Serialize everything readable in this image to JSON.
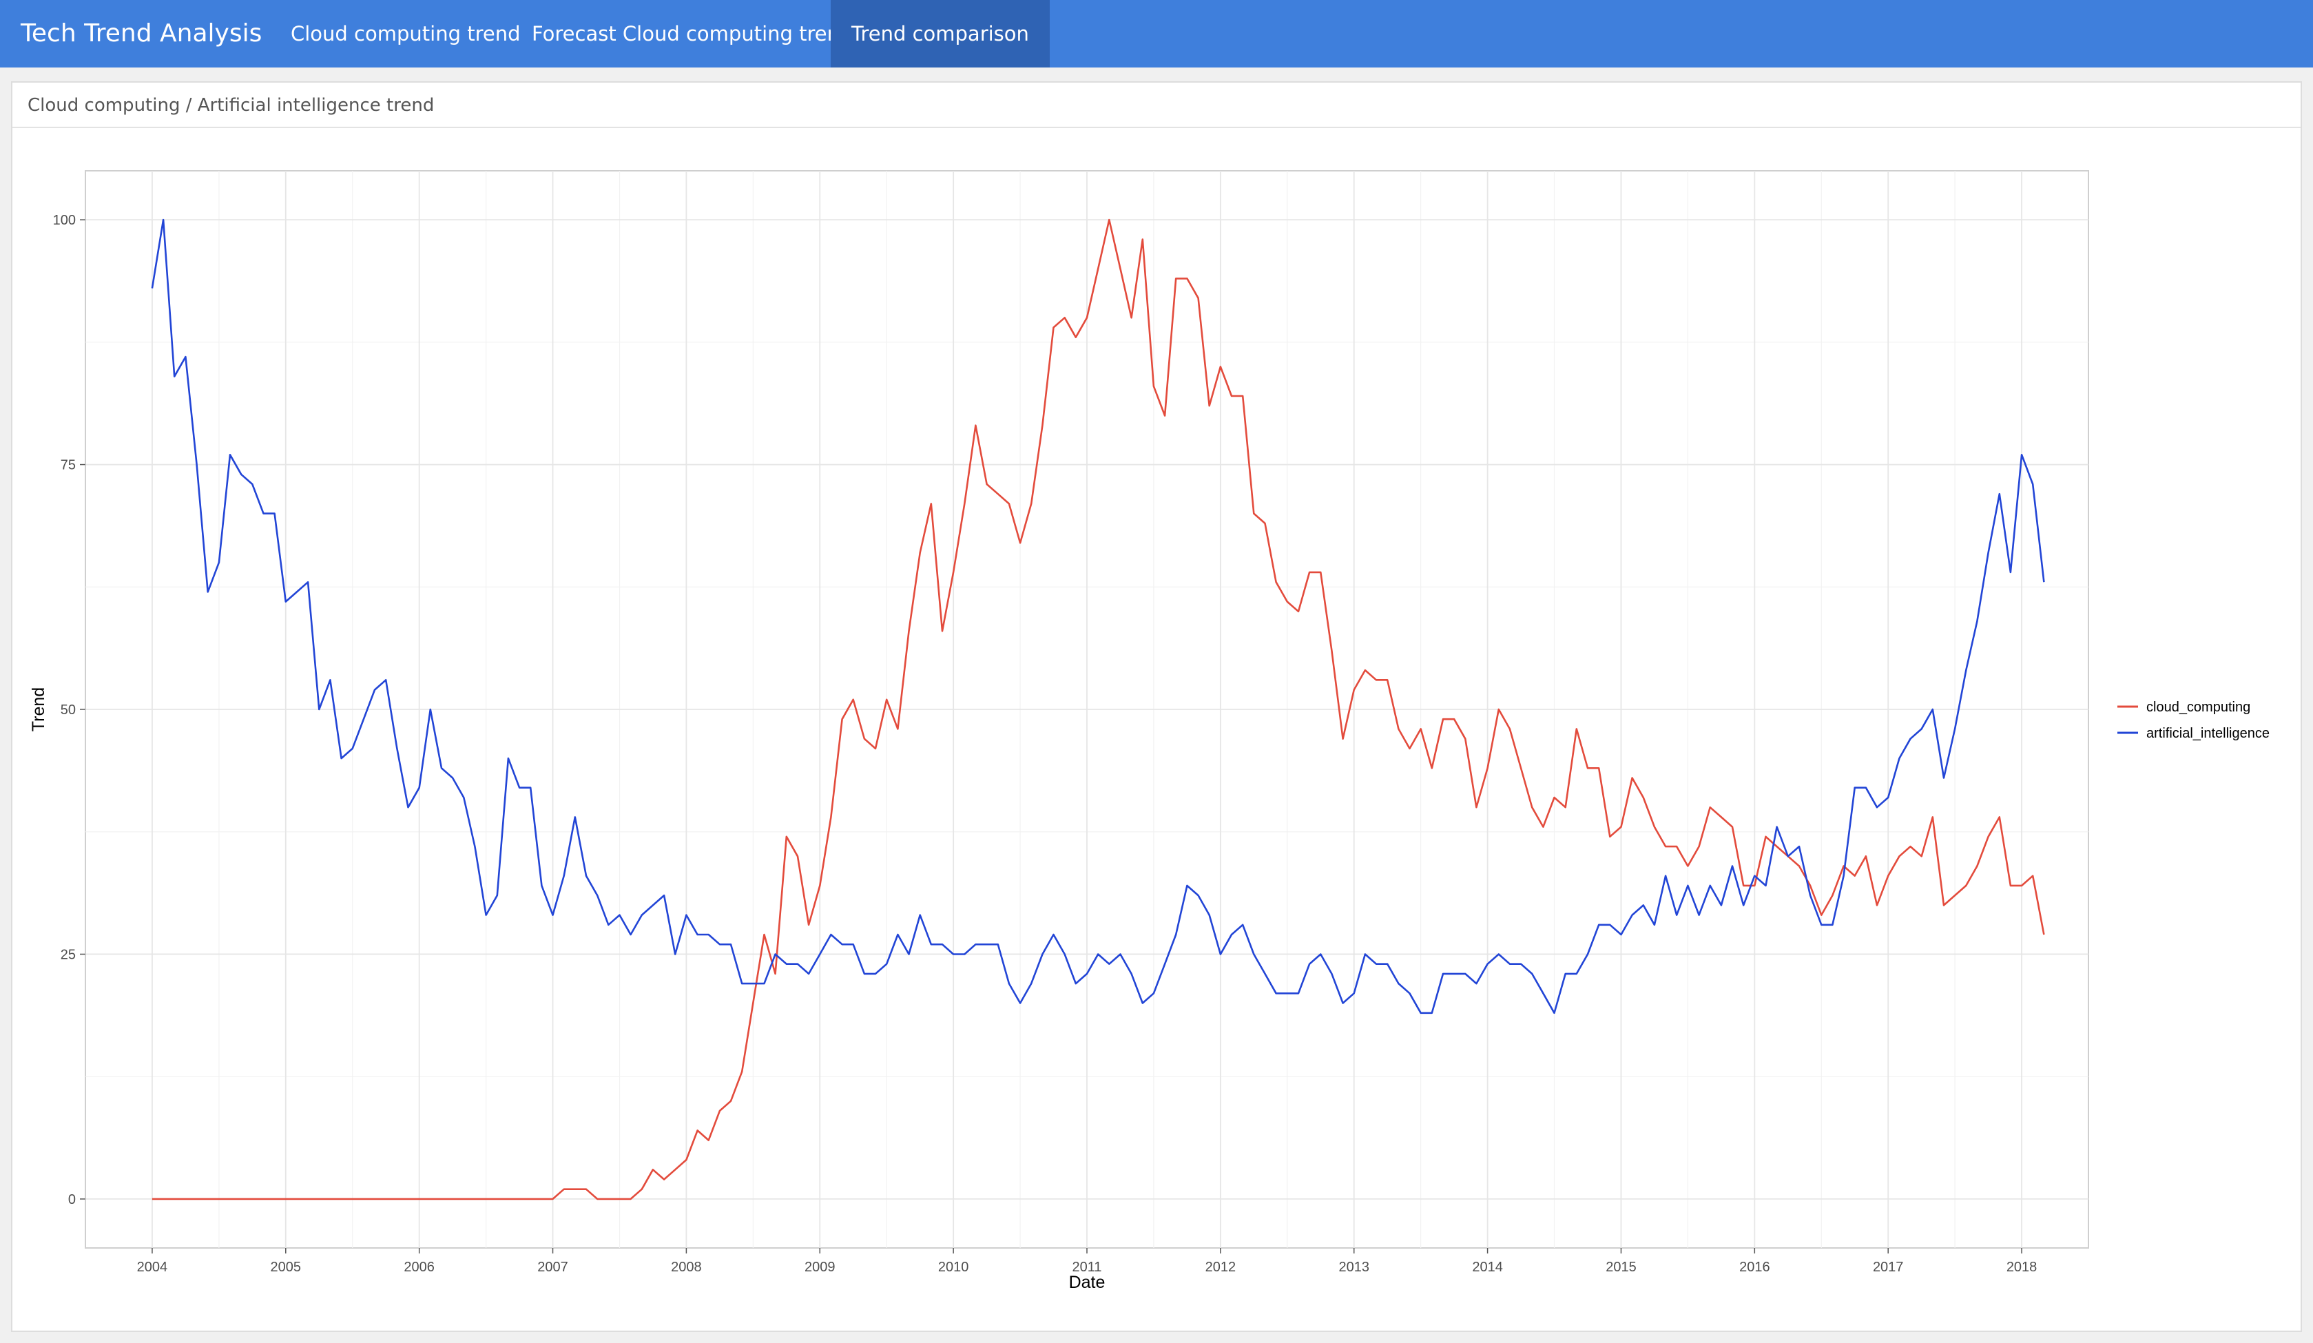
{
  "app": {
    "brand": "Tech Trend Analysis",
    "tabs": [
      {
        "label": "Cloud computing trend",
        "active": false
      },
      {
        "label": "Forecast Cloud computing trend",
        "active": false
      },
      {
        "label": "Trend comparison",
        "active": true
      }
    ],
    "colors": {
      "navbar": "#3f7fdc",
      "active_tab": "#2f63b4"
    }
  },
  "panel": {
    "title": "Cloud computing / Artificial intelligence trend"
  },
  "chart_data": {
    "type": "line",
    "xlabel": "Date",
    "ylabel": "Trend",
    "xlim": [
      2003.5,
      2018.5
    ],
    "ylim": [
      -5,
      105
    ],
    "x_ticks": [
      2004,
      2005,
      2006,
      2007,
      2008,
      2009,
      2010,
      2011,
      2012,
      2013,
      2014,
      2015,
      2016,
      2017,
      2018
    ],
    "y_ticks": [
      0,
      25,
      50,
      75,
      100
    ],
    "grid": true,
    "legend_position": "right",
    "x_start": 2004.0,
    "x_step_months": 1,
    "series": [
      {
        "name": "cloud_computing",
        "color": "#e34b3c",
        "values": [
          0,
          0,
          0,
          0,
          0,
          0,
          0,
          0,
          0,
          0,
          0,
          0,
          0,
          0,
          0,
          0,
          0,
          0,
          0,
          0,
          0,
          0,
          0,
          0,
          0,
          0,
          0,
          0,
          0,
          0,
          0,
          0,
          0,
          0,
          0,
          0,
          0,
          1,
          1,
          1,
          0,
          0,
          0,
          0,
          1,
          3,
          2,
          3,
          4,
          7,
          6,
          9,
          10,
          13,
          20,
          27,
          23,
          37,
          35,
          28,
          32,
          39,
          49,
          51,
          47,
          46,
          51,
          48,
          58,
          66,
          71,
          58,
          64,
          71,
          79,
          73,
          72,
          71,
          67,
          71,
          79,
          89,
          90,
          88,
          90,
          95,
          100,
          95,
          90,
          98,
          83,
          80,
          94,
          94,
          92,
          81,
          85,
          82,
          82,
          70,
          69,
          63,
          61,
          60,
          64,
          64,
          56,
          47,
          52,
          54,
          53,
          53,
          48,
          46,
          48,
          44,
          49,
          49,
          47,
          40,
          44,
          50,
          48,
          44,
          40,
          38,
          41,
          40,
          48,
          44,
          44,
          37,
          38,
          43,
          41,
          38,
          36,
          36,
          34,
          36,
          40,
          39,
          38,
          32,
          32,
          37,
          36,
          35,
          34,
          32,
          29,
          31,
          34,
          33,
          35,
          30,
          33,
          35,
          36,
          35,
          39,
          30,
          31,
          32,
          34,
          37,
          39,
          32,
          32,
          33,
          27
        ]
      },
      {
        "name": "artificial_intelligence",
        "color": "#2245d6",
        "values": [
          93,
          100,
          84,
          86,
          75,
          62,
          65,
          76,
          74,
          73,
          70,
          70,
          61,
          62,
          63,
          50,
          53,
          45,
          46,
          49,
          52,
          53,
          46,
          40,
          42,
          50,
          44,
          43,
          41,
          36,
          29,
          31,
          45,
          42,
          42,
          32,
          29,
          33,
          39,
          33,
          31,
          28,
          29,
          27,
          29,
          30,
          31,
          25,
          29,
          27,
          27,
          26,
          26,
          22,
          22,
          22,
          25,
          24,
          24,
          23,
          25,
          27,
          26,
          26,
          23,
          23,
          24,
          27,
          25,
          29,
          26,
          26,
          25,
          25,
          26,
          26,
          26,
          22,
          20,
          22,
          25,
          27,
          25,
          22,
          23,
          25,
          24,
          25,
          23,
          20,
          21,
          24,
          27,
          32,
          31,
          29,
          25,
          27,
          28,
          25,
          23,
          21,
          21,
          21,
          24,
          25,
          23,
          20,
          21,
          25,
          24,
          24,
          22,
          21,
          19,
          19,
          23,
          23,
          23,
          22,
          24,
          25,
          24,
          24,
          23,
          21,
          19,
          23,
          23,
          25,
          28,
          28,
          27,
          29,
          30,
          28,
          33,
          29,
          32,
          29,
          32,
          30,
          34,
          30,
          33,
          32,
          38,
          35,
          36,
          31,
          28,
          28,
          33,
          42,
          42,
          40,
          41,
          45,
          47,
          48,
          50,
          43,
          48,
          54,
          59,
          66,
          72,
          64,
          76,
          73,
          63
        ]
      }
    ]
  }
}
